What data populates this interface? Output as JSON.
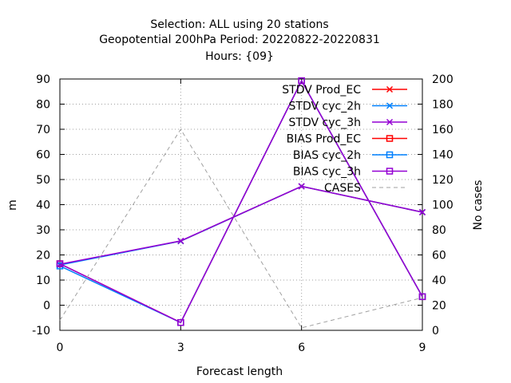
{
  "chart_data": {
    "type": "line",
    "title_lines": [
      "Selection: ALL using    20 stations",
      "Geopotential 200hPa   Period: 20220822-20220831",
      "Hours: {09}"
    ],
    "xlabel": "Forecast length",
    "ylabel": "m",
    "y2label": "No cases",
    "x": [
      0,
      3,
      6,
      9
    ],
    "xlim": [
      0,
      9
    ],
    "ylim": [
      -10,
      90
    ],
    "y2lim": [
      0,
      200
    ],
    "xticks": [
      "0",
      "3",
      "6",
      "9"
    ],
    "yticks": [
      "-10",
      "0",
      "10",
      "20",
      "30",
      "40",
      "50",
      "60",
      "70",
      "80",
      "90"
    ],
    "y2ticks": [
      "0",
      "20",
      "40",
      "60",
      "80",
      "100",
      "120",
      "140",
      "160",
      "180",
      "200"
    ],
    "grid": true,
    "legend_position": "top-right",
    "series": [
      {
        "name": "STDV Prod_EC",
        "axis": "y",
        "color": "#ff0000",
        "marker": "x",
        "values": [
          16.2,
          25.5,
          47.3,
          37.0
        ]
      },
      {
        "name": "STDV cyc_2h",
        "axis": "y",
        "color": "#0080ff",
        "marker": "x",
        "values": [
          16.0,
          25.5,
          47.3,
          37.0
        ]
      },
      {
        "name": "STDV cyc_3h",
        "axis": "y",
        "color": "#9400d3",
        "marker": "x",
        "values": [
          16.3,
          25.6,
          47.3,
          37.0
        ]
      },
      {
        "name": "BIAS Prod_EC",
        "axis": "y",
        "color": "#ff0000",
        "marker": "square",
        "values": [
          16.5,
          -6.9,
          89.3,
          3.4
        ]
      },
      {
        "name": "BIAS cyc_2h",
        "axis": "y",
        "color": "#0080ff",
        "marker": "square",
        "values": [
          15.6,
          -6.9,
          89.3,
          3.4
        ]
      },
      {
        "name": "BIAS cyc_3h",
        "axis": "y",
        "color": "#9400d3",
        "marker": "square",
        "values": [
          16.5,
          -6.9,
          89.3,
          3.4
        ]
      },
      {
        "name": "CASES",
        "axis": "y2",
        "color": "#a0a0a0",
        "marker": "none",
        "dash": true,
        "values": [
          8,
          160,
          2,
          26
        ]
      }
    ]
  }
}
